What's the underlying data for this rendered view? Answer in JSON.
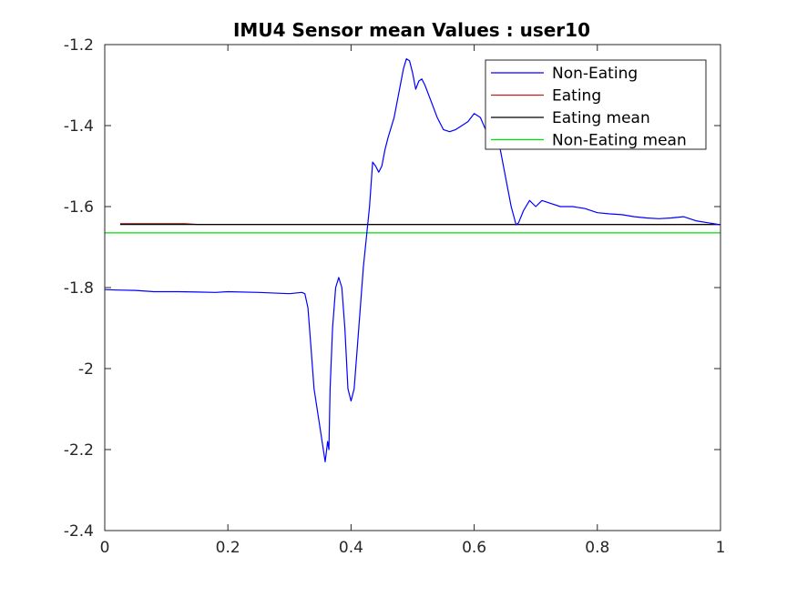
{
  "chart_data": {
    "type": "line",
    "title": "IMU4 Sensor mean Values : user10",
    "xlabel": "",
    "ylabel": "",
    "xlim": [
      0,
      1
    ],
    "ylim": [
      -2.4,
      -1.2
    ],
    "x_ticks": [
      0,
      0.2,
      0.4,
      0.6,
      0.8,
      1
    ],
    "x_tick_labels": [
      "0",
      "0.2",
      "0.4",
      "0.6",
      "0.8",
      "1"
    ],
    "y_ticks": [
      -2.4,
      -2.2,
      -2.0,
      -1.8,
      -1.6,
      -1.4,
      -1.2
    ],
    "y_tick_labels": [
      "-2.4",
      "-2.2",
      "-2",
      "-1.8",
      "-1.6",
      "-1.4",
      "-1.2"
    ],
    "grid": false,
    "legend_position": "top-right",
    "series": [
      {
        "name": "Non-Eating",
        "color": "#0000ff",
        "x": [
          0,
          0.02,
          0.05,
          0.08,
          0.12,
          0.15,
          0.18,
          0.2,
          0.25,
          0.3,
          0.32,
          0.325,
          0.33,
          0.335,
          0.34,
          0.35,
          0.358,
          0.362,
          0.364,
          0.366,
          0.37,
          0.375,
          0.38,
          0.385,
          0.39,
          0.395,
          0.4,
          0.405,
          0.41,
          0.42,
          0.43,
          0.435,
          0.44,
          0.445,
          0.45,
          0.455,
          0.46,
          0.47,
          0.48,
          0.485,
          0.49,
          0.495,
          0.5,
          0.505,
          0.51,
          0.515,
          0.52,
          0.53,
          0.54,
          0.55,
          0.56,
          0.57,
          0.58,
          0.59,
          0.6,
          0.61,
          0.62,
          0.63,
          0.64,
          0.65,
          0.66,
          0.668,
          0.672,
          0.68,
          0.69,
          0.7,
          0.71,
          0.72,
          0.74,
          0.76,
          0.78,
          0.8,
          0.82,
          0.84,
          0.86,
          0.88,
          0.9,
          0.92,
          0.94,
          0.96,
          0.98,
          1.0
        ],
        "y": [
          -1.805,
          -1.806,
          -1.807,
          -1.81,
          -1.81,
          -1.811,
          -1.812,
          -1.81,
          -1.812,
          -1.815,
          -1.812,
          -1.815,
          -1.85,
          -1.95,
          -2.05,
          -2.15,
          -2.23,
          -2.18,
          -2.2,
          -2.05,
          -1.9,
          -1.8,
          -1.775,
          -1.8,
          -1.9,
          -2.05,
          -2.08,
          -2.05,
          -1.95,
          -1.75,
          -1.6,
          -1.49,
          -1.5,
          -1.515,
          -1.5,
          -1.46,
          -1.43,
          -1.38,
          -1.3,
          -1.26,
          -1.235,
          -1.24,
          -1.27,
          -1.31,
          -1.29,
          -1.285,
          -1.3,
          -1.34,
          -1.38,
          -1.41,
          -1.415,
          -1.41,
          -1.4,
          -1.39,
          -1.37,
          -1.38,
          -1.415,
          -1.42,
          -1.44,
          -1.52,
          -1.6,
          -1.645,
          -1.64,
          -1.61,
          -1.585,
          -1.6,
          -1.585,
          -1.59,
          -1.6,
          -1.6,
          -1.605,
          -1.615,
          -1.618,
          -1.62,
          -1.625,
          -1.628,
          -1.63,
          -1.628,
          -1.625,
          -1.635,
          -1.64,
          -1.645
        ]
      },
      {
        "name": "Eating",
        "color": "#b22222",
        "x": [
          0.025,
          0.13,
          0.15,
          0.5,
          1.0
        ],
        "y": [
          -1.642,
          -1.642,
          -1.644,
          -1.644,
          -1.644
        ]
      },
      {
        "name": "Eating mean",
        "color": "#000000",
        "x": [
          0.025,
          1.0
        ],
        "y": [
          -1.644,
          -1.644
        ]
      },
      {
        "name": "Non-Eating mean",
        "color": "#00dd00",
        "x": [
          0,
          1.0
        ],
        "y": [
          -1.665,
          -1.665
        ]
      }
    ]
  }
}
